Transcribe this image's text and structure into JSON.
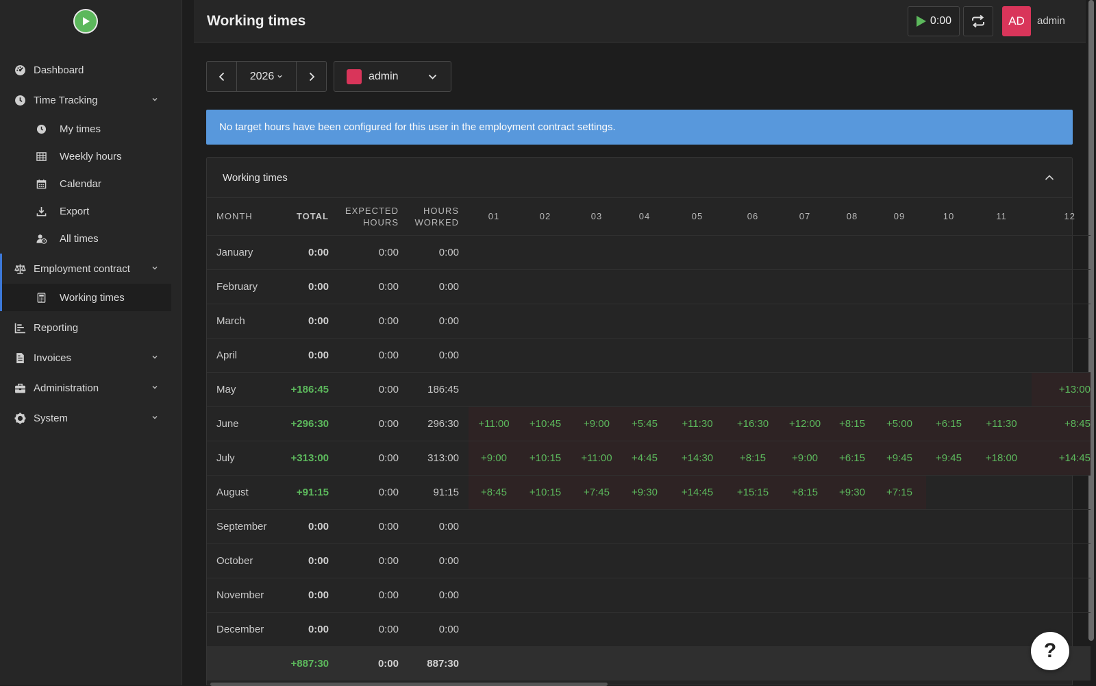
{
  "app": {
    "title": "Working times"
  },
  "sidebar": {
    "items": [
      {
        "label": "Dashboard",
        "icon": "dashboard-icon"
      },
      {
        "label": "Time Tracking",
        "icon": "clock-icon",
        "expandable": true,
        "children": [
          {
            "label": "My times",
            "icon": "clock-icon"
          },
          {
            "label": "Weekly hours",
            "icon": "table-icon"
          },
          {
            "label": "Calendar",
            "icon": "calendar-icon"
          },
          {
            "label": "Export",
            "icon": "download-icon"
          },
          {
            "label": "All times",
            "icon": "user-clock-icon"
          }
        ]
      },
      {
        "label": "Employment contract",
        "icon": "scale-icon",
        "expandable": true,
        "children": [
          {
            "label": "Working times",
            "icon": "calculator-icon",
            "active": true
          }
        ]
      },
      {
        "label": "Reporting",
        "icon": "chart-icon"
      },
      {
        "label": "Invoices",
        "icon": "invoice-icon",
        "expandable": true
      },
      {
        "label": "Administration",
        "icon": "toolbox-icon",
        "expandable": true
      },
      {
        "label": "System",
        "icon": "gear-icon",
        "expandable": true
      }
    ]
  },
  "header": {
    "title": "Working times",
    "timer": "0:00",
    "avatar_initials": "AD",
    "username": "admin",
    "avatar_color": "#d9355a"
  },
  "toolbar": {
    "year": "2026",
    "user": "admin",
    "user_color": "#d9355a"
  },
  "alert": {
    "text": "No target hours have been configured for this user in the employment contract settings.",
    "color": "#5898dc"
  },
  "card": {
    "title": "Working times",
    "columns": {
      "month": "MONTH",
      "total": "TOTAL",
      "expected_1": "EXPECTED",
      "expected_2": "HOURS",
      "worked_1": "HOURS",
      "worked_2": "WORKED",
      "days": [
        "01",
        "02",
        "03",
        "04",
        "05",
        "06",
        "07",
        "08",
        "09",
        "10",
        "11",
        "12"
      ]
    },
    "rows": [
      {
        "month": "January",
        "total": "0:00",
        "expected": "0:00",
        "worked": "0:00",
        "days": [
          "",
          "",
          "",
          "",
          "",
          "",
          "",
          "",
          "",
          "",
          "",
          ""
        ]
      },
      {
        "month": "February",
        "total": "0:00",
        "expected": "0:00",
        "worked": "0:00",
        "days": [
          "",
          "",
          "",
          "",
          "",
          "",
          "",
          "",
          "",
          "",
          "",
          ""
        ]
      },
      {
        "month": "March",
        "total": "0:00",
        "expected": "0:00",
        "worked": "0:00",
        "days": [
          "",
          "",
          "",
          "",
          "",
          "",
          "",
          "",
          "",
          "",
          "",
          ""
        ]
      },
      {
        "month": "April",
        "total": "0:00",
        "expected": "0:00",
        "worked": "0:00",
        "days": [
          "",
          "",
          "",
          "",
          "",
          "",
          "",
          "",
          "",
          "",
          "",
          ""
        ]
      },
      {
        "month": "May",
        "total": "+186:45",
        "expected": "0:00",
        "worked": "186:45",
        "days": [
          "",
          "",
          "",
          "",
          "",
          "",
          "",
          "",
          "",
          "",
          "",
          "+13:00"
        ]
      },
      {
        "month": "June",
        "total": "+296:30",
        "expected": "0:00",
        "worked": "296:30",
        "days": [
          "+11:00",
          "+10:45",
          "+9:00",
          "+5:45",
          "+11:30",
          "+16:30",
          "+12:00",
          "+8:15",
          "+5:00",
          "+6:15",
          "+11:30",
          "+8:45"
        ]
      },
      {
        "month": "July",
        "total": "+313:00",
        "expected": "0:00",
        "worked": "313:00",
        "days": [
          "+9:00",
          "+10:15",
          "+11:00",
          "+4:45",
          "+14:30",
          "+8:15",
          "+9:00",
          "+6:15",
          "+9:45",
          "+9:45",
          "+18:00",
          "+14:45"
        ]
      },
      {
        "month": "August",
        "total": "+91:15",
        "expected": "0:00",
        "worked": "91:15",
        "days": [
          "+8:45",
          "+10:15",
          "+7:45",
          "+9:30",
          "+14:45",
          "+15:15",
          "+8:15",
          "+9:30",
          "+7:15",
          "",
          "",
          ""
        ]
      },
      {
        "month": "September",
        "total": "0:00",
        "expected": "0:00",
        "worked": "0:00",
        "days": [
          "",
          "",
          "",
          "",
          "",
          "",
          "",
          "",
          "",
          "",
          "",
          ""
        ]
      },
      {
        "month": "October",
        "total": "0:00",
        "expected": "0:00",
        "worked": "0:00",
        "days": [
          "",
          "",
          "",
          "",
          "",
          "",
          "",
          "",
          "",
          "",
          "",
          ""
        ]
      },
      {
        "month": "November",
        "total": "0:00",
        "expected": "0:00",
        "worked": "0:00",
        "days": [
          "",
          "",
          "",
          "",
          "",
          "",
          "",
          "",
          "",
          "",
          "",
          ""
        ]
      },
      {
        "month": "December",
        "total": "0:00",
        "expected": "0:00",
        "worked": "0:00",
        "days": [
          "",
          "",
          "",
          "",
          "",
          "",
          "",
          "",
          "",
          "",
          "",
          ""
        ]
      }
    ],
    "summary": {
      "total": "+887:30",
      "expected": "0:00",
      "worked": "887:30"
    }
  },
  "help": {
    "label": "?"
  },
  "colors": {
    "positive": "#5cb85c",
    "accent": "#3c78d8",
    "filled_cell": "#2e2324"
  }
}
